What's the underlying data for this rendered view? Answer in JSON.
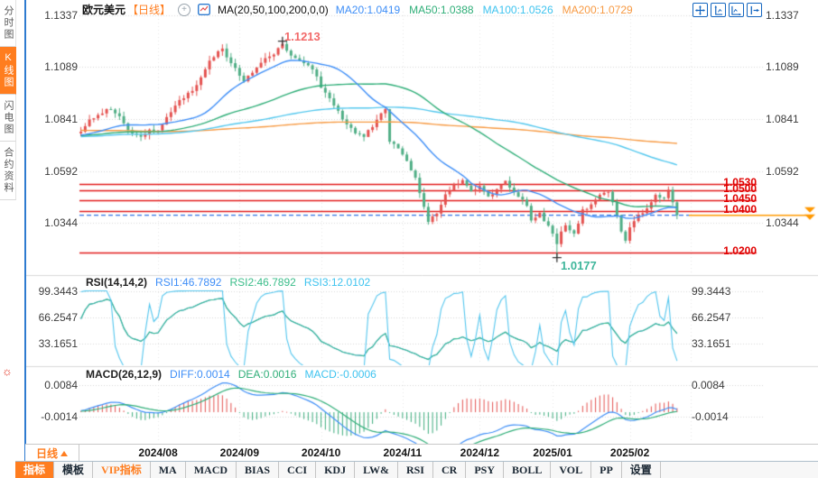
{
  "header": {
    "symbol": "欧元美元",
    "timeframe_tag": "【日线】",
    "ma_label": "MA(20,50,100,200,0,0)",
    "ma_values": [
      {
        "label": "MA20:1.0419",
        "color": "#3e8ef7"
      },
      {
        "label": "MA50:1.0388",
        "color": "#2fae78"
      },
      {
        "label": "MA100:1.0526",
        "color": "#3ec3ef"
      },
      {
        "label": "MA200:1.0729",
        "color": "#f79a43"
      }
    ],
    "toolbar_icons": [
      "pan-icon",
      "fit-vertical-axis-icon",
      "fit-horizontal-axis-icon",
      "shift-right-icon"
    ]
  },
  "sidebar": {
    "items": [
      {
        "label": "分时图",
        "active": false
      },
      {
        "label": "K线图",
        "active": true
      },
      {
        "label": "闪电图",
        "active": false
      },
      {
        "label": "合约资料",
        "active": false
      }
    ],
    "settings_icon": "☼"
  },
  "xaxis": {
    "timeframe": "日线",
    "months": [
      "2024/08",
      "2024/09",
      "2024/10",
      "2024/11",
      "2024/12",
      "2025/01",
      "2025/02"
    ]
  },
  "tabs": [
    {
      "label": "指标",
      "style": "active"
    },
    {
      "label": "模板",
      "style": ""
    },
    {
      "label": "VIP指标",
      "style": "vip"
    },
    {
      "label": "MA",
      "style": ""
    },
    {
      "label": "MACD",
      "style": ""
    },
    {
      "label": "BIAS",
      "style": ""
    },
    {
      "label": "CCI",
      "style": ""
    },
    {
      "label": "KDJ",
      "style": ""
    },
    {
      "label": "LW&",
      "style": ""
    },
    {
      "label": "RSI",
      "style": ""
    },
    {
      "label": "CR",
      "style": ""
    },
    {
      "label": "PSY",
      "style": ""
    },
    {
      "label": "BOLL",
      "style": ""
    },
    {
      "label": "VOL",
      "style": ""
    },
    {
      "label": "PP",
      "style": ""
    },
    {
      "label": "设置",
      "style": ""
    }
  ],
  "rsi_panel": {
    "title": "RSI(14,14,2)",
    "values": [
      {
        "label": "RSI1:46.7892",
        "color": "#3e8ef7"
      },
      {
        "label": "RSI2:46.7892",
        "color": "#3bbd8a"
      },
      {
        "label": "RSI3:12.0102",
        "color": "#3ec3ef"
      }
    ],
    "axis_labels": [
      "99.3443",
      "66.2547",
      "33.1651"
    ]
  },
  "macd_panel": {
    "title": "MACD(26,12,9)",
    "values": [
      {
        "label": "DIFF:0.0014",
        "color": "#3e8ef7"
      },
      {
        "label": "DEA:0.0016",
        "color": "#2fae78"
      },
      {
        "label": "MACD:-0.0006",
        "color": "#3ec3ef"
      }
    ],
    "axis_labels": [
      "0.0084",
      "-0.0014"
    ]
  },
  "chart_data": {
    "type": "candlestick",
    "symbol": "欧元美元",
    "interval": "日线",
    "x_categories": [
      "2024/08",
      "2024/09",
      "2024/10",
      "2024/11",
      "2024/12",
      "2025/01",
      "2025/02"
    ],
    "y_axis_ticks": [
      1.1337,
      1.1089,
      1.0841,
      1.0592,
      1.0344
    ],
    "y_axis_tick_labels": [
      "1.1337",
      "1.1089",
      "1.0841",
      "1.0592",
      "1.0344"
    ],
    "high_annotation": {
      "text": "1.1213",
      "value": 1.1213,
      "color": "#f26a6a"
    },
    "low_annotation": {
      "text": "1.0177",
      "value": 1.0177,
      "color": "#3fb69b"
    },
    "last_close_line": 1.038,
    "horizontal_levels": [
      {
        "label": "1.0530",
        "value": 1.053
      },
      {
        "label": "1.0500",
        "value": 1.05
      },
      {
        "label": "1.0450",
        "value": 1.045
      },
      {
        "label": "1.0400",
        "value": 1.04
      },
      {
        "label": "1.0200",
        "value": 1.02
      }
    ],
    "ma": {
      "MA20": 1.0419,
      "MA50": 1.0388,
      "MA100": 1.0526,
      "MA200": 1.0729
    },
    "rsi": {
      "RSI1": 46.7892,
      "RSI2": 46.7892,
      "RSI3": 12.0102,
      "ticks": [
        99.3443,
        66.2547,
        33.1651
      ]
    },
    "macd": {
      "DIFF": 0.0014,
      "DEA": 0.0016,
      "MACD": -0.0006,
      "ticks": [
        0.0084,
        -0.0014
      ]
    },
    "candle_count": 140,
    "seed": 7,
    "wiggle": 0.0011,
    "wick": 0.0026,
    "price_waypoints": [
      [
        0,
        1.078
      ],
      [
        2,
        1.0838
      ],
      [
        4,
        1.086
      ],
      [
        6,
        1.0888
      ],
      [
        8,
        1.0868
      ],
      [
        10,
        1.082
      ],
      [
        12,
        1.0772
      ],
      [
        14,
        1.0756
      ],
      [
        16,
        1.079
      ],
      [
        18,
        1.0786
      ],
      [
        20,
        1.085
      ],
      [
        22,
        1.0905
      ],
      [
        24,
        1.094
      ],
      [
        26,
        1.0975
      ],
      [
        28,
        1.104
      ],
      [
        30,
        1.112
      ],
      [
        32,
        1.1165
      ],
      [
        33,
        1.1178
      ],
      [
        35,
        1.1108
      ],
      [
        37,
        1.1048
      ],
      [
        38,
        1.1022
      ],
      [
        40,
        1.1062
      ],
      [
        42,
        1.111
      ],
      [
        44,
        1.114
      ],
      [
        46,
        1.118
      ],
      [
        47,
        1.12
      ],
      [
        48,
        1.1168
      ],
      [
        50,
        1.1132
      ],
      [
        52,
        1.1108
      ],
      [
        54,
        1.1078
      ],
      [
        56,
        1.099
      ],
      [
        58,
        1.094
      ],
      [
        60,
        1.088
      ],
      [
        62,
        1.0815
      ],
      [
        64,
        1.0772
      ],
      [
        66,
        1.0755
      ],
      [
        68,
        1.0802
      ],
      [
        70,
        1.0868
      ],
      [
        71,
        1.0888
      ],
      [
        72,
        1.0732
      ],
      [
        74,
        1.07
      ],
      [
        76,
        1.064
      ],
      [
        78,
        1.056
      ],
      [
        80,
        1.042
      ],
      [
        81,
        1.0348
      ],
      [
        83,
        1.0388
      ],
      [
        85,
        1.048
      ],
      [
        87,
        1.053
      ],
      [
        89,
        1.0548
      ],
      [
        91,
        1.0495
      ],
      [
        93,
        1.052
      ],
      [
        95,
        1.047
      ],
      [
        97,
        1.0505
      ],
      [
        99,
        1.0545
      ],
      [
        101,
        1.049
      ],
      [
        103,
        1.0455
      ],
      [
        104,
        1.0425
      ],
      [
        105,
        1.0355
      ],
      [
        107,
        1.0392
      ],
      [
        109,
        1.033
      ],
      [
        110,
        1.0292
      ],
      [
        111,
        1.0242
      ],
      [
        112,
        1.0302
      ],
      [
        113,
        1.0332
      ],
      [
        115,
        1.0292
      ],
      [
        117,
        1.0408
      ],
      [
        119,
        1.0432
      ],
      [
        121,
        1.0478
      ],
      [
        123,
        1.0492
      ],
      [
        124,
        1.0442
      ],
      [
        126,
        1.0302
      ],
      [
        127,
        1.0258
      ],
      [
        128,
        1.0322
      ],
      [
        130,
        1.0382
      ],
      [
        132,
        1.0412
      ],
      [
        134,
        1.0478
      ],
      [
        136,
        1.0462
      ],
      [
        137,
        1.0502
      ],
      [
        138,
        1.0442
      ],
      [
        139,
        1.038
      ]
    ],
    "prehistory_waypoints": [
      [
        0,
        1.089
      ],
      [
        40,
        1.084
      ],
      [
        80,
        1.076
      ],
      [
        120,
        1.074
      ],
      [
        155,
        1.0775
      ],
      [
        175,
        1.0745
      ],
      [
        199,
        1.0772
      ]
    ],
    "overrides": [
      {
        "i": 47,
        "high": 1.1213
      },
      {
        "i": 111,
        "low": 1.0177
      },
      {
        "i": 139,
        "close": 1.038
      }
    ],
    "colors": {
      "up": "#e4514f",
      "down": "#4fae85",
      "ma20": "#3e8ef7",
      "ma50": "#2fae78",
      "ma100": "#55c8ee",
      "ma200": "#f79a43",
      "level": "#e11a1a",
      "dashed": "#2f6fe4",
      "priceline": "#ff9800",
      "grid": "#d6d6d6",
      "hist_pos": "#e4514f",
      "hist_neg": "#3bab7c",
      "rsi_fast": "#54c6ee",
      "rsi_slow": "#3bbd8a",
      "rsi_slow2": "#3e8ef7",
      "diff": "#3e8ef7",
      "dea": "#2fae78"
    }
  }
}
